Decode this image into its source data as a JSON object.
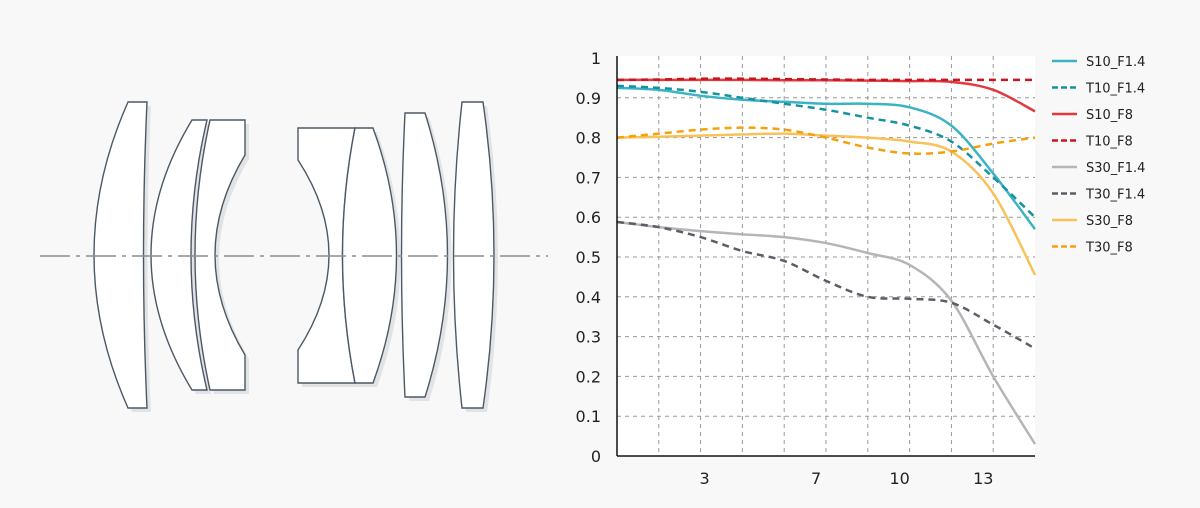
{
  "chart_data": {
    "type": "line",
    "title": "",
    "xlabel": "",
    "ylabel": "",
    "xlim": [
      0,
      15
    ],
    "ylim": [
      0,
      1
    ],
    "grid": true,
    "legend_position": "right",
    "x_tick_labels": [
      3,
      7,
      10,
      13
    ],
    "y_tick_labels": [
      "0",
      "0.1",
      "0.2",
      "0.3",
      "0.4",
      "0.5",
      "0.6",
      "0.7",
      "0.8",
      "0.9",
      "1"
    ],
    "x": [
      0,
      1.5,
      3,
      4.5,
      6,
      7.5,
      9,
      10.5,
      12,
      13.5,
      15
    ],
    "series": [
      {
        "name": "S10_F1.4",
        "color": "#3bb3c3",
        "dashed": false,
        "values": [
          0.925,
          0.92,
          0.905,
          0.895,
          0.89,
          0.885,
          0.885,
          0.876,
          0.83,
          0.71,
          0.57
        ]
      },
      {
        "name": "T10_F1.4",
        "color": "#13939f",
        "dashed": true,
        "values": [
          0.93,
          0.925,
          0.915,
          0.9,
          0.885,
          0.87,
          0.85,
          0.83,
          0.79,
          0.7,
          0.6
        ]
      },
      {
        "name": "S10_F8",
        "color": "#e0393e",
        "dashed": false,
        "values": [
          0.945,
          0.945,
          0.945,
          0.945,
          0.944,
          0.944,
          0.943,
          0.942,
          0.94,
          0.92,
          0.866
        ]
      },
      {
        "name": "T10_F8",
        "color": "#c8161e",
        "dashed": true,
        "values": [
          0.945,
          0.946,
          0.948,
          0.948,
          0.947,
          0.946,
          0.945,
          0.945,
          0.945,
          0.945,
          0.945
        ]
      },
      {
        "name": "S30_F1.4",
        "color": "#b5b5b8",
        "dashed": false,
        "values": [
          0.588,
          0.575,
          0.565,
          0.557,
          0.55,
          0.535,
          0.51,
          0.48,
          0.39,
          0.2,
          0.03
        ]
      },
      {
        "name": "T30_F1.4",
        "color": "#5a5e66",
        "dashed": true,
        "values": [
          0.588,
          0.575,
          0.55,
          0.515,
          0.49,
          0.44,
          0.4,
          0.395,
          0.385,
          0.33,
          0.27
        ]
      },
      {
        "name": "S30_F8",
        "color": "#f7c25a",
        "dashed": false,
        "values": [
          0.8,
          0.802,
          0.805,
          0.808,
          0.81,
          0.805,
          0.8,
          0.79,
          0.765,
          0.66,
          0.455
        ]
      },
      {
        "name": "T30_F8",
        "color": "#f3a10d",
        "dashed": true,
        "values": [
          0.8,
          0.81,
          0.82,
          0.825,
          0.82,
          0.8,
          0.775,
          0.76,
          0.765,
          0.785,
          0.8
        ]
      }
    ]
  }
}
